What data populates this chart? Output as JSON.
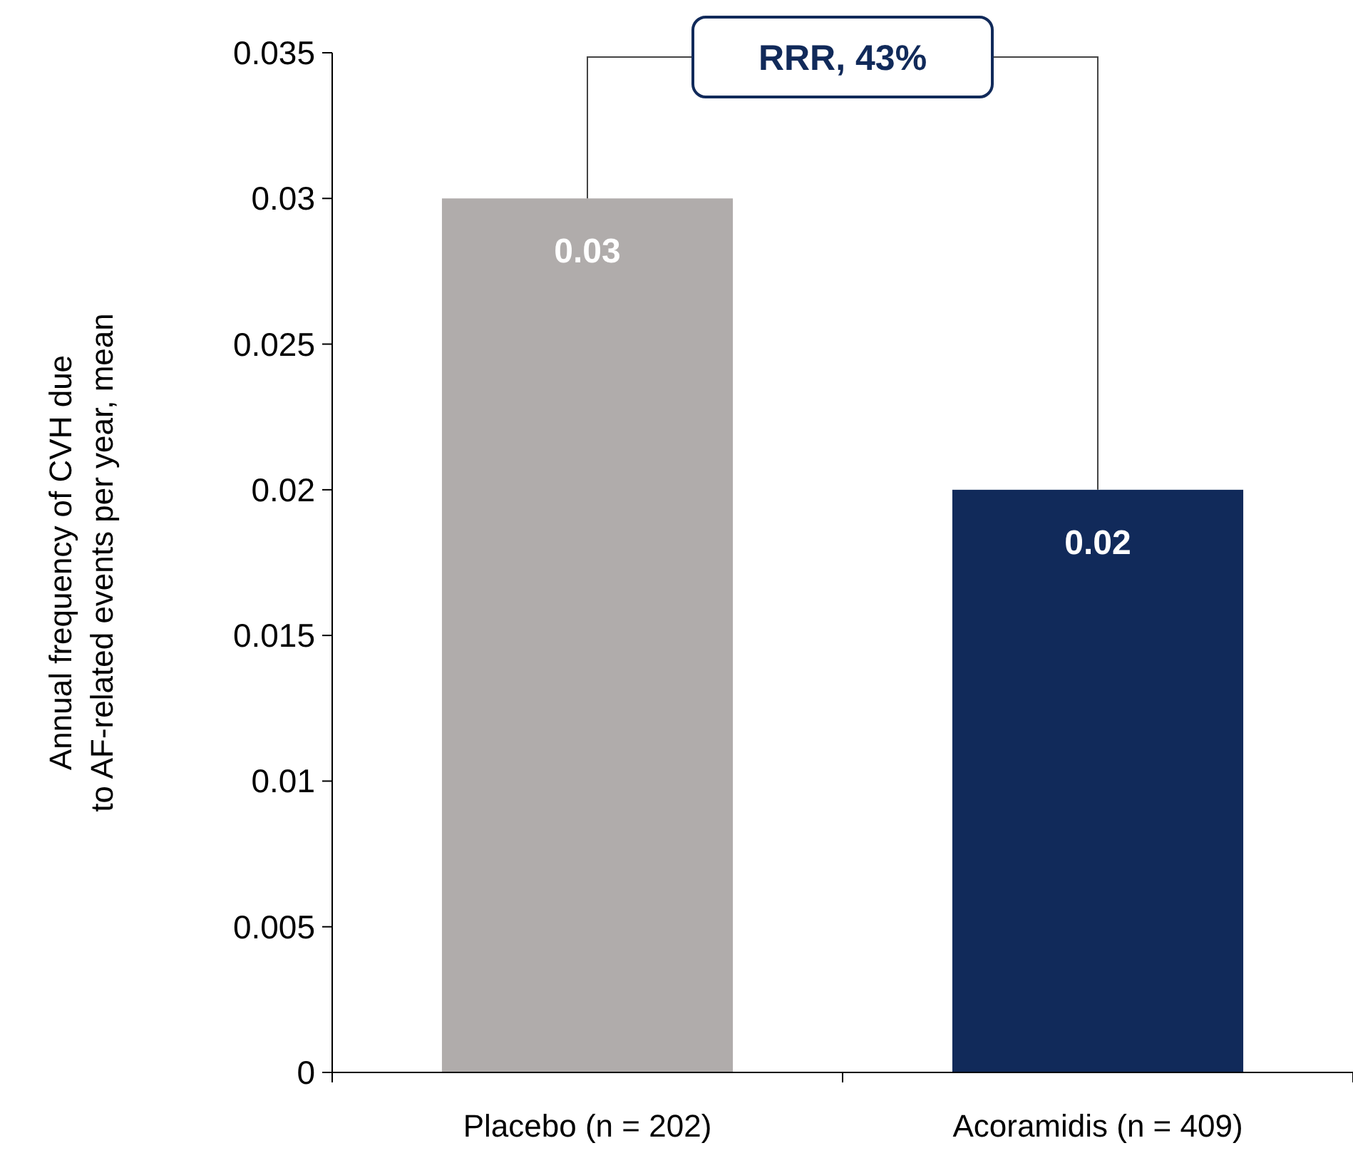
{
  "chart_data": {
    "type": "bar",
    "ylabel": "Annual frequency of CVH due\nto AF-related events per year, mean",
    "categories": [
      "Placebo (n = 202)",
      "Acoramidis (n = 409)"
    ],
    "values": [
      0.03,
      0.02
    ],
    "colors": [
      "#b0acab",
      "#112a5a"
    ],
    "ylim": [
      0,
      0.035
    ],
    "yticks": [
      0,
      0.005,
      0.01,
      0.015,
      0.02,
      0.025,
      0.03,
      0.035
    ],
    "data_labels": true,
    "grid": false,
    "annotations": [
      "RRR, 43%"
    ]
  }
}
